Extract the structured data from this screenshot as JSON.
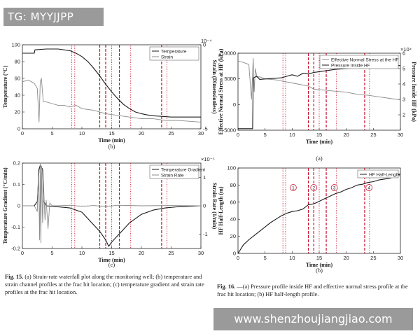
{
  "watermark_top": "TG: MYYJJPP",
  "watermark_bottom": "www.shenzhoujiangjiao.com",
  "fig15_caption": {
    "label": "Fig. 15.",
    "text": "(a) Strain-rate waterfall plot along the monitoring well; (b) temperature and strain channel profiles at the frac hit location; (c) temperature gradient and strain rate profiles at the frac hit location."
  },
  "fig16_caption": {
    "label": "Fig. 16.",
    "text": "—(a) Pressure profile inside HF and effective normal stress profile at the frac hit location; (b) HF half-length profile."
  },
  "colors": {
    "black": "#1a1a1a",
    "gray": "#8c8c8c",
    "red": "#c8102e"
  },
  "chart_data": [
    {
      "id": "b",
      "type": "line",
      "sublabel": "(b)",
      "xlabel": "Time (min)",
      "ylabel": "Temperature (°C)",
      "y2label": "Strain (Dimensionless)",
      "y2exponent": "10⁻⁴",
      "xlim": [
        0,
        30
      ],
      "xticks": [
        "0",
        "5",
        "10",
        "15",
        "20",
        "25",
        "30"
      ],
      "ylim": [
        0,
        100
      ],
      "yticks": [
        "0",
        "20",
        "40",
        "60",
        "80",
        "100"
      ],
      "y2lim": [
        -5,
        0
      ],
      "y2ticks": [
        "-5",
        "0"
      ],
      "legend": [
        "Temperature",
        "Strain"
      ],
      "series": [
        {
          "name": "Temperature",
          "axis": "left",
          "color": "black",
          "x": [
            0,
            2,
            2.1,
            4,
            6,
            8,
            9,
            10,
            11,
            12,
            13,
            14,
            15,
            16,
            17,
            18,
            19,
            20,
            21,
            22,
            23,
            24,
            25,
            27,
            30
          ],
          "y": [
            90,
            90,
            94,
            95,
            95,
            93,
            90,
            86,
            80,
            72,
            63,
            53,
            44,
            36,
            29,
            24,
            20,
            18,
            16.5,
            15.5,
            15,
            14.5,
            14,
            14,
            14
          ]
        },
        {
          "name": "Strain",
          "axis": "right",
          "color": "gray",
          "x": [
            0,
            1,
            2,
            2.5,
            2.8,
            3,
            3.2,
            3.5,
            4,
            5,
            6,
            7,
            8,
            9,
            10,
            12,
            14,
            16,
            18,
            20,
            22,
            24,
            26,
            28,
            30
          ],
          "y": [
            -2.2,
            -2.1,
            -2.3,
            -2.6,
            -4.6,
            -2.2,
            -2.0,
            -3.4,
            -3.4,
            -3.5,
            -3.6,
            -3.6,
            -3.7,
            -3.6,
            -3.8,
            -3.9,
            -4.1,
            -4.2,
            -4.3,
            -4.4,
            -4.4,
            -4.5,
            -4.5,
            -4.55,
            -4.6
          ]
        }
      ],
      "vlines": [
        {
          "x": 8.3,
          "style": "dotted"
        },
        {
          "x": 8.8,
          "style": "dotted"
        },
        {
          "x": 13.0,
          "style": "dashed"
        },
        {
          "x": 14.0,
          "style": "dashed"
        },
        {
          "x": 15.0,
          "style": "dotted"
        },
        {
          "x": 16.3,
          "style": "dashed"
        },
        {
          "x": 18.2,
          "style": "dotted"
        },
        {
          "x": 23.4,
          "style": "dashed"
        },
        {
          "x": 24.3,
          "style": "dotted"
        }
      ]
    },
    {
      "id": "c",
      "type": "line",
      "sublabel": "(c)",
      "xlabel": "Time (min)",
      "ylabel": "Temperature Gradient (°C/min)",
      "y2label": "Strain Rate (1/min)",
      "y2exponent": "×10⁻⁵",
      "xlim": [
        0,
        30
      ],
      "xticks": [
        "0",
        "5",
        "10",
        "15",
        "20",
        "25",
        "30"
      ],
      "ylim": [
        -0.2,
        0.2
      ],
      "yticks": [
        "-0.2",
        "-0.1",
        "0",
        "0.1",
        "0.2"
      ],
      "y2lim": [
        -1.5,
        1.5
      ],
      "y2ticks": [
        "-1",
        "0",
        "1"
      ],
      "legend": [
        "Temperature Gradient",
        "Strain Rate"
      ],
      "series": [
        {
          "name": "Temperature Gradient",
          "axis": "left",
          "color": "black",
          "x": [
            0,
            2,
            2.5,
            2.8,
            3.0,
            3.2,
            3.4,
            3.6,
            4,
            6,
            8,
            10,
            11,
            12,
            13,
            14,
            14.5,
            15,
            16,
            17,
            18,
            19,
            20,
            22,
            24,
            26,
            30
          ],
          "y": [
            0,
            0,
            0.02,
            0.17,
            0.19,
            0.18,
            0.17,
            0.02,
            0,
            -0.005,
            -0.01,
            -0.03,
            -0.06,
            -0.09,
            -0.12,
            -0.16,
            -0.19,
            -0.17,
            -0.14,
            -0.11,
            -0.08,
            -0.06,
            -0.04,
            -0.02,
            -0.01,
            -0.005,
            0
          ]
        },
        {
          "name": "Strain Rate",
          "axis": "right",
          "color": "gray",
          "x": [
            0,
            2,
            2.5,
            2.7,
            2.9,
            3.0,
            3.1,
            3.2,
            3.4,
            3.6,
            3.8,
            4.0,
            4.3,
            4.6,
            5,
            6,
            8,
            10,
            12,
            14,
            16,
            20,
            25,
            30
          ],
          "y": [
            0,
            0,
            -0.2,
            1.3,
            -1.2,
            1.5,
            -1.3,
            1.4,
            -0.6,
            0.5,
            -0.5,
            0.2,
            -0.8,
            0.1,
            0,
            0,
            0.02,
            -0.02,
            0.01,
            -0.03,
            0.02,
            0,
            0.01,
            0
          ]
        }
      ],
      "vlines": [
        {
          "x": 8.3,
          "style": "dotted"
        },
        {
          "x": 8.8,
          "style": "dotted"
        },
        {
          "x": 13.0,
          "style": "dashed"
        },
        {
          "x": 14.0,
          "style": "dashed"
        },
        {
          "x": 15.0,
          "style": "dotted"
        },
        {
          "x": 16.3,
          "style": "dashed"
        },
        {
          "x": 18.2,
          "style": "dotted"
        },
        {
          "x": 23.4,
          "style": "dashed"
        },
        {
          "x": 24.3,
          "style": "dotted"
        }
      ]
    },
    {
      "id": "a",
      "type": "line",
      "sublabel": "(a)",
      "xlabel": "Time (min)",
      "ylabel": "Effective Normal Stress at HF (kPa)",
      "y2label": "Pressure Inside HF (kPa)",
      "y2exponent": "×10⁴",
      "xlim": [
        0,
        30
      ],
      "xticks": [
        "0",
        "5",
        "10",
        "15",
        "20",
        "25",
        "30"
      ],
      "ylim": [
        -5000,
        10000
      ],
      "yticks": [
        "-5000",
        "0",
        "5000",
        "10000"
      ],
      "y2lim": [
        1,
        6
      ],
      "y2ticks": [
        "2",
        "3",
        "4",
        "5",
        "6"
      ],
      "legend": [
        "Effective Normal Stress at the HF",
        "Pressure Inside HF"
      ],
      "series": [
        {
          "name": "Effective Normal Stress at the HF",
          "axis": "left",
          "color": "gray",
          "x": [
            0,
            1,
            2,
            2.5,
            2.8,
            3.0,
            3.2,
            3.5,
            4,
            5,
            7,
            9,
            10,
            11,
            13,
            14,
            16,
            18,
            20,
            22,
            24,
            26,
            28,
            30
          ],
          "y": [
            8500,
            8200,
            7800,
            1000,
            9000,
            2500,
            7000,
            5300,
            5400,
            5000,
            4800,
            4400,
            4200,
            4000,
            3600,
            3000,
            2800,
            2600,
            2400,
            2000,
            1800,
            1500,
            1200,
            900
          ]
        },
        {
          "name": "Pressure Inside HF",
          "axis": "right",
          "color": "black",
          "x": [
            0,
            2.7,
            2.8,
            3.5,
            4,
            6,
            8,
            9,
            10,
            11,
            12,
            13,
            14,
            15,
            16,
            17,
            18,
            20,
            22,
            24,
            26,
            28,
            30
          ],
          "y": [
            1.1,
            1.1,
            4.4,
            4.5,
            4.3,
            4.35,
            4.4,
            4.5,
            4.6,
            4.5,
            4.7,
            4.65,
            4.75,
            4.8,
            4.85,
            4.9,
            4.95,
            5.0,
            5.05,
            5.05,
            5.1,
            5.15,
            5.2
          ]
        }
      ],
      "vlines": [
        {
          "x": 8.3,
          "style": "dotted"
        },
        {
          "x": 8.8,
          "style": "dotted"
        },
        {
          "x": 13.0,
          "style": "dashed"
        },
        {
          "x": 14.0,
          "style": "dashed"
        },
        {
          "x": 15.0,
          "style": "dotted"
        },
        {
          "x": 16.3,
          "style": "dashed"
        },
        {
          "x": 18.2,
          "style": "dotted"
        },
        {
          "x": 23.4,
          "style": "dashed"
        },
        {
          "x": 24.3,
          "style": "dotted"
        }
      ]
    },
    {
      "id": "bb",
      "type": "line",
      "sublabel": "(b)",
      "xlabel": "Time (min)",
      "ylabel": "HF Half-Length (m)",
      "xlim": [
        0,
        30
      ],
      "xticks": [
        "0",
        "5",
        "10",
        "15",
        "20",
        "25",
        "30"
      ],
      "ylim": [
        0,
        100
      ],
      "yticks": [
        "0",
        "20",
        "40",
        "60",
        "80",
        "100"
      ],
      "legend": [
        "HF Half-Length"
      ],
      "annotations": [
        {
          "text": "1",
          "x": 10.2,
          "y": 77
        },
        {
          "text": "2",
          "x": 14.0,
          "y": 77
        },
        {
          "text": "3",
          "x": 17.8,
          "y": 77
        },
        {
          "text": "4",
          "x": 24.2,
          "y": 77
        }
      ],
      "series": [
        {
          "name": "HF Half-Length",
          "axis": "left",
          "color": "black",
          "x": [
            0,
            0.5,
            1,
            2,
            3,
            4,
            5,
            6,
            7,
            8,
            9,
            10,
            11,
            12,
            13,
            14,
            15,
            16,
            17,
            18,
            19,
            20,
            21,
            22,
            23,
            24,
            25,
            26,
            27,
            28,
            29,
            30
          ],
          "y": [
            0,
            5,
            10,
            16,
            21,
            26,
            31,
            36,
            40,
            44,
            47,
            49,
            50,
            52,
            57,
            58,
            61,
            64,
            67,
            70,
            72,
            75,
            77,
            80,
            81,
            83,
            84,
            86,
            87,
            88,
            90,
            93
          ]
        }
      ],
      "vlines": [
        {
          "x": 8.3,
          "style": "dotted"
        },
        {
          "x": 8.8,
          "style": "dotted"
        },
        {
          "x": 13.0,
          "style": "dashed"
        },
        {
          "x": 14.0,
          "style": "dashed"
        },
        {
          "x": 15.0,
          "style": "dotted"
        },
        {
          "x": 16.3,
          "style": "dashed"
        },
        {
          "x": 18.2,
          "style": "dotted"
        },
        {
          "x": 23.4,
          "style": "dashed"
        },
        {
          "x": 24.3,
          "style": "dotted"
        }
      ]
    }
  ]
}
